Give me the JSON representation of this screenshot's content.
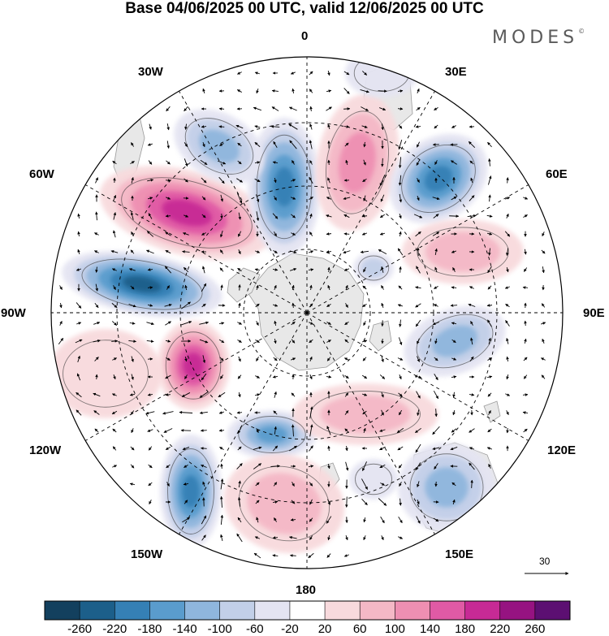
{
  "title": "Base 04/06/2025 00 UTC, valid 12/06/2025 00 UTC",
  "brand": "MODES",
  "brand_mark": "©",
  "grid_labels": {
    "lon_0": "0",
    "lon_30e": "30E",
    "lon_60e": "60E",
    "lon_90e": "90E",
    "lon_120e": "120E",
    "lon_150e": "150E",
    "lon_180": "180",
    "lon_150w": "150W",
    "lon_120w": "120W",
    "lon_90w": "90W",
    "lon_60w": "60W",
    "lon_30w": "30W"
  },
  "reference_vector": {
    "value": "30",
    "icon": "arrow-right-icon"
  },
  "colorbar": {
    "ticks": [
      "-260",
      "-220",
      "-180",
      "-140",
      "-100",
      "-60",
      "-20",
      "20",
      "60",
      "100",
      "140",
      "180",
      "220",
      "260"
    ],
    "colors": [
      "#13405e",
      "#1c5f8a",
      "#3580b5",
      "#5a9ccd",
      "#8fb6dd",
      "#c2cfe8",
      "#e4e4f2",
      "#ffffff",
      "#f8dadd",
      "#f4b8c6",
      "#ee8fb2",
      "#e05aa5",
      "#c72a95",
      "#961381",
      "#5c0f72"
    ]
  },
  "map_features": {
    "anomaly_icon": "geopotential-anomaly-shading",
    "wind_icon": "wind-vector-arrow-icon",
    "land_color": "#e8e8e8"
  }
}
